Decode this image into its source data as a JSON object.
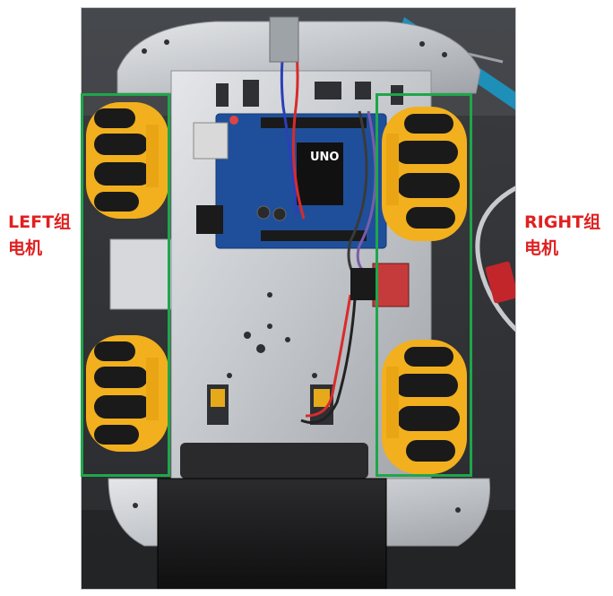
{
  "figure": {
    "description_icon": "robot-car-photo",
    "left_label": {
      "line1": "LEFT组",
      "line2": "电机"
    },
    "right_label": {
      "line1": "RIGHT组",
      "line2": "电机"
    },
    "board_text": {
      "uno": "UNO"
    }
  },
  "colors": {
    "callout": "#1fa64a",
    "label": "#e02020",
    "wheel_yellow": "#f2b01e",
    "roller_black": "#1a1a1a",
    "board_blue": "#1f4f9a",
    "plate_silver": "#c9ccd0"
  }
}
